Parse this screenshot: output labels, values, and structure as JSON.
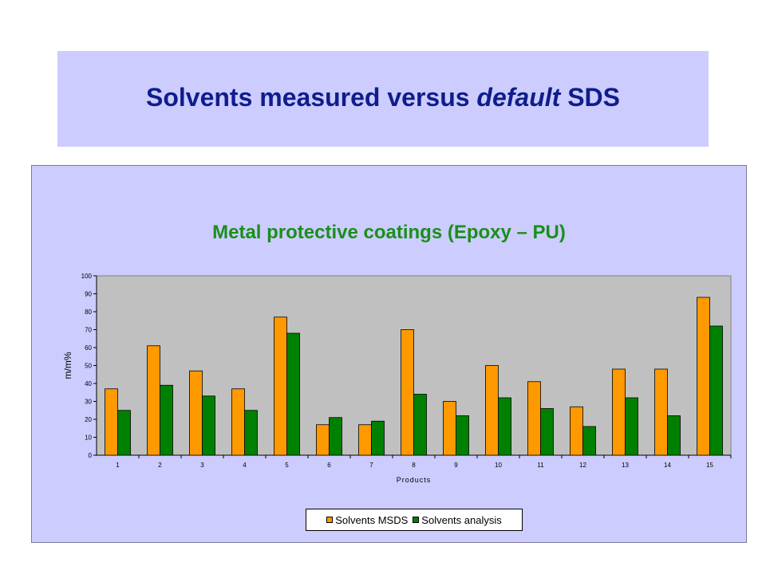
{
  "slide": {
    "title_pre": "Solvents measured versus ",
    "title_em": "default",
    "title_post": " SDS"
  },
  "chart_data": {
    "type": "bar",
    "title": "Metal protective coatings (Epoxy – PU)",
    "xlabel": "Products",
    "ylabel": "m/m%",
    "ylim": [
      0,
      100
    ],
    "yticks": [
      "0",
      "10",
      "20",
      "30",
      "40",
      "50",
      "60",
      "70",
      "80",
      "90",
      "100"
    ],
    "categories": [
      "1",
      "2",
      "3",
      "4",
      "5",
      "6",
      "7",
      "8",
      "9",
      "10",
      "11",
      "12",
      "13",
      "14",
      "15"
    ],
    "series": [
      {
        "name": "Solvents MSDS",
        "color": "#ff9900",
        "values": [
          37,
          61,
          47,
          37,
          77,
          17,
          17,
          70,
          30,
          50,
          41,
          27,
          48,
          48,
          88
        ]
      },
      {
        "name": "Solvents analysis",
        "color": "#008000",
        "values": [
          25,
          39,
          33,
          25,
          68,
          21,
          19,
          34,
          22,
          32,
          26,
          16,
          32,
          22,
          72
        ]
      }
    ],
    "plot_background": "#c0c0c0",
    "grid": false,
    "legend": "bottom"
  }
}
